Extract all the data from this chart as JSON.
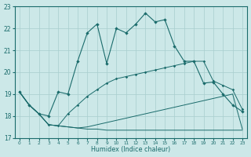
{
  "xlabel": "Humidex (Indice chaleur)",
  "xlim": [
    -0.5,
    23.5
  ],
  "ylim": [
    17,
    23
  ],
  "yticks": [
    17,
    18,
    19,
    20,
    21,
    22,
    23
  ],
  "xticks": [
    0,
    1,
    2,
    3,
    4,
    5,
    6,
    7,
    8,
    9,
    10,
    11,
    12,
    13,
    14,
    15,
    16,
    17,
    18,
    19,
    20,
    21,
    22,
    23
  ],
  "bg_color": "#cce8e8",
  "line_color": "#1a6b6b",
  "grid_color": "#a8cece",
  "line1_x": [
    0,
    1,
    2,
    3,
    4,
    5,
    6,
    7,
    8,
    9,
    10,
    11,
    12,
    13,
    14,
    15,
    16,
    17,
    18,
    19,
    20,
    21,
    22,
    23
  ],
  "line1_y": [
    19.1,
    18.5,
    18.1,
    17.6,
    17.55,
    17.5,
    17.45,
    17.4,
    17.4,
    17.35,
    17.35,
    17.35,
    17.35,
    17.35,
    17.35,
    17.35,
    17.35,
    17.35,
    17.35,
    17.35,
    17.35,
    17.35,
    17.35,
    17.35
  ],
  "line2_x": [
    0,
    1,
    2,
    3,
    4,
    5,
    6,
    7,
    8,
    9,
    10,
    11,
    12,
    13,
    14,
    15,
    16,
    17,
    18,
    19,
    20,
    21,
    22,
    23
  ],
  "line2_y": [
    19.1,
    18.5,
    18.1,
    17.6,
    17.55,
    17.5,
    17.45,
    17.5,
    17.6,
    17.7,
    17.8,
    17.9,
    18.0,
    18.1,
    18.2,
    18.3,
    18.4,
    18.5,
    18.6,
    18.7,
    18.8,
    18.9,
    19.0,
    17.4
  ],
  "line3_x": [
    0,
    1,
    2,
    3,
    4,
    5,
    6,
    7,
    8,
    9,
    10,
    11,
    12,
    13,
    14,
    15,
    16,
    17,
    18,
    19,
    20,
    21,
    22,
    23
  ],
  "line3_y": [
    19.1,
    18.5,
    18.1,
    17.6,
    17.55,
    18.1,
    18.5,
    18.9,
    19.2,
    19.5,
    19.7,
    19.8,
    19.9,
    20.0,
    20.1,
    20.2,
    20.3,
    20.4,
    20.5,
    20.5,
    19.6,
    19.4,
    19.2,
    18.3
  ],
  "line4_x": [
    0,
    1,
    2,
    3,
    4,
    5,
    6,
    7,
    8,
    9,
    10,
    11,
    12,
    13,
    14,
    15,
    16,
    17,
    18,
    19,
    20,
    21,
    22,
    23
  ],
  "line4_y": [
    19.1,
    18.5,
    18.1,
    18.0,
    19.1,
    19.0,
    20.5,
    21.8,
    22.2,
    20.4,
    22.0,
    21.8,
    22.2,
    22.7,
    22.3,
    22.4,
    21.2,
    20.5,
    20.5,
    19.5,
    19.55,
    19.0,
    18.5,
    18.2
  ]
}
